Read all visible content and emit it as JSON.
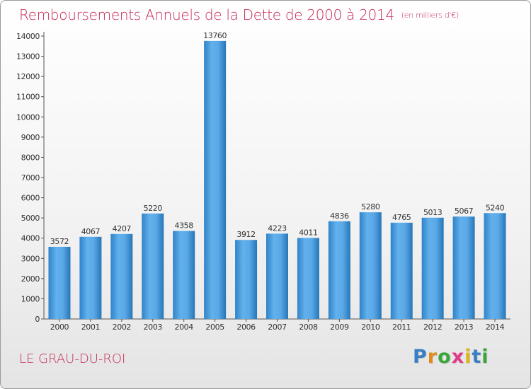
{
  "title": "Remboursements Annuels de la Dette de 2000 à 2014",
  "unit_note": "(en milliers d'€)",
  "town": "LE GRAU-DU-ROI",
  "brand": {
    "letters": [
      "P",
      "r",
      "o",
      "x",
      "i",
      "t",
      "i"
    ],
    "colors": [
      "#3a7fc4",
      "#e08a1e",
      "#3aa63a",
      "#e03a8a",
      "#e0b31e",
      "#3a7fc4",
      "#3aa63a"
    ]
  },
  "colors": {
    "bar_light": "#62b0ec",
    "bar_dark": "#2676b8",
    "text_accent": "#c72a55"
  },
  "chart_data": {
    "type": "bar",
    "title": "Remboursements Annuels de la Dette de 2000 à 2014",
    "categories": [
      "2000",
      "2001",
      "2002",
      "2003",
      "2004",
      "2005",
      "2006",
      "2007",
      "2008",
      "2009",
      "2010",
      "2011",
      "2012",
      "2013",
      "2014"
    ],
    "values": [
      3572,
      4067,
      4207,
      5220,
      4358,
      13760,
      3912,
      4223,
      4011,
      4836,
      5280,
      4765,
      5013,
      5067,
      5240
    ],
    "ylim": [
      0,
      14000
    ],
    "yticks": [
      0,
      1000,
      2000,
      3000,
      4000,
      5000,
      6000,
      7000,
      8000,
      9000,
      10000,
      11000,
      12000,
      13000,
      14000
    ],
    "grid": false,
    "data_labels": true
  }
}
